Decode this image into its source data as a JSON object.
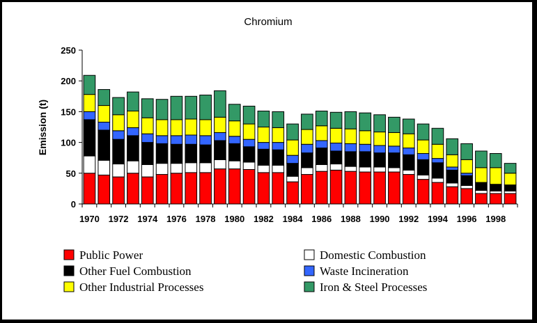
{
  "chart_data": {
    "type": "bar",
    "stacked": true,
    "title": "Chromium",
    "xlabel": "",
    "ylabel": "Emission (t)",
    "ylim": [
      0,
      250
    ],
    "yticks": [
      0,
      50,
      100,
      150,
      200,
      250
    ],
    "categories": [
      "1970",
      "1971",
      "1972",
      "1973",
      "1974",
      "1975",
      "1976",
      "1977",
      "1978",
      "1979",
      "1980",
      "1981",
      "1982",
      "1983",
      "1984",
      "1985",
      "1986",
      "1987",
      "1988",
      "1989",
      "1990",
      "1991",
      "1992",
      "1993",
      "1994",
      "1995",
      "1996",
      "1997",
      "1998",
      "1999"
    ],
    "xtick_labels": [
      "1970",
      "1972",
      "1974",
      "1976",
      "1978",
      "1980",
      "1982",
      "1984",
      "1986",
      "1988",
      "1990",
      "1992",
      "1994",
      "1996",
      "1998"
    ],
    "legend_position": "bottom",
    "series": [
      {
        "name": "Public Power",
        "color": "#ff0000",
        "values": [
          50,
          47,
          44,
          50,
          44,
          48,
          50,
          51,
          51,
          57,
          57,
          56,
          51,
          51,
          36,
          48,
          53,
          55,
          53,
          52,
          52,
          52,
          48,
          40,
          35,
          28,
          25,
          17,
          17,
          17
        ]
      },
      {
        "name": "Domestic Combustion",
        "color": "#ffffff",
        "values": [
          28,
          24,
          21,
          20,
          20,
          18,
          16,
          16,
          16,
          15,
          13,
          12,
          12,
          12,
          9,
          11,
          11,
          10,
          8,
          8,
          8,
          7,
          7,
          7,
          7,
          6,
          5,
          5,
          4,
          4
        ]
      },
      {
        "name": "Other Fuel Combustion",
        "color": "#000000",
        "values": [
          59,
          49,
          40,
          41,
          36,
          32,
          31,
          30,
          29,
          31,
          28,
          25,
          26,
          25,
          21,
          24,
          27,
          21,
          24,
          25,
          23,
          24,
          25,
          25,
          25,
          21,
          16,
          13,
          11,
          10
        ]
      },
      {
        "name": "Waste Incineration",
        "color": "#3366ff",
        "values": [
          13,
          13,
          14,
          13,
          14,
          13,
          14,
          15,
          15,
          13,
          12,
          12,
          11,
          12,
          13,
          14,
          12,
          13,
          13,
          12,
          12,
          11,
          11,
          10,
          7,
          5,
          4,
          0,
          0,
          0
        ]
      },
      {
        "name": "Other Industrial Processes",
        "color": "#ffff00",
        "values": [
          28,
          27,
          26,
          27,
          26,
          26,
          26,
          26,
          26,
          25,
          25,
          25,
          25,
          24,
          25,
          24,
          24,
          24,
          24,
          22,
          22,
          22,
          23,
          22,
          23,
          20,
          22,
          24,
          27,
          19
        ]
      },
      {
        "name": "Iron & Steel Processes",
        "color": "#339966",
        "values": [
          31,
          26,
          28,
          31,
          31,
          33,
          38,
          37,
          40,
          43,
          27,
          29,
          26,
          26,
          26,
          25,
          24,
          26,
          28,
          29,
          28,
          25,
          24,
          26,
          26,
          26,
          26,
          27,
          23,
          16
        ]
      }
    ]
  }
}
